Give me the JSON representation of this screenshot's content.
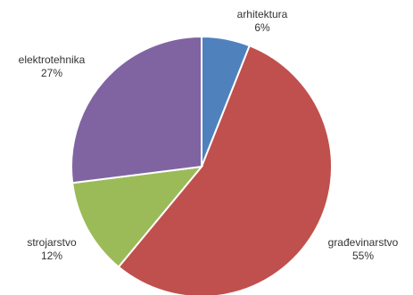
{
  "chart_data": {
    "type": "pie",
    "title": "",
    "start_angle_deg": 0,
    "direction": "clockwise",
    "slices": [
      {
        "name": "arhitektura",
        "value": 6,
        "value_label": "6%",
        "color": "#4f81bd"
      },
      {
        "name": "građevinarstvo",
        "value": 55,
        "value_label": "55%",
        "color": "#c0504d"
      },
      {
        "name": "strojarstvo",
        "value": 12,
        "value_label": "12%",
        "color": "#9bbb59"
      },
      {
        "name": "elektrotehnika",
        "value": 27,
        "value_label": "27%",
        "color": "#8064a2"
      }
    ]
  }
}
